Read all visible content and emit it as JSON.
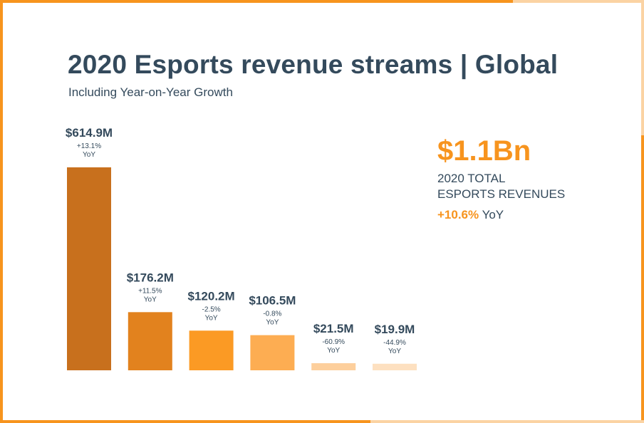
{
  "header": {
    "title": "2020 Esports revenue streams | Global",
    "subtitle": "Including Year-on-Year Growth"
  },
  "summary": {
    "total": "$1.1Bn",
    "label_line1": "2020 TOTAL",
    "label_line2": "ESPORTS REVENUES",
    "growth": "+10.6%",
    "growth_unit": "YoY"
  },
  "colors": {
    "title": "#344a5c",
    "accent": "#f7941e",
    "frame_orange": "#f7941e",
    "frame_light": "#fbd3a3"
  },
  "chart_data": {
    "type": "bar",
    "value_unit": "$M",
    "categories": [
      "",
      "",
      "",
      "",
      "",
      ""
    ],
    "values": [
      614.9,
      176.2,
      120.2,
      106.5,
      21.5,
      19.9
    ],
    "value_labels": [
      "$614.9M",
      "$176.2M",
      "$120.2M",
      "$106.5M",
      "$21.5M",
      "$19.9M"
    ],
    "growth_labels": [
      "+13.1%",
      "+11.5%",
      "-2.5%",
      "-0.8%",
      "-60.9%",
      "-44.9%"
    ],
    "growth_unit": "YoY",
    "bar_colors": [
      "#c8701d",
      "#e2821e",
      "#fb9a24",
      "#fdad52",
      "#fdcf9c",
      "#fde0c0"
    ],
    "ylim": [
      0,
      614.9
    ],
    "grid": false
  }
}
